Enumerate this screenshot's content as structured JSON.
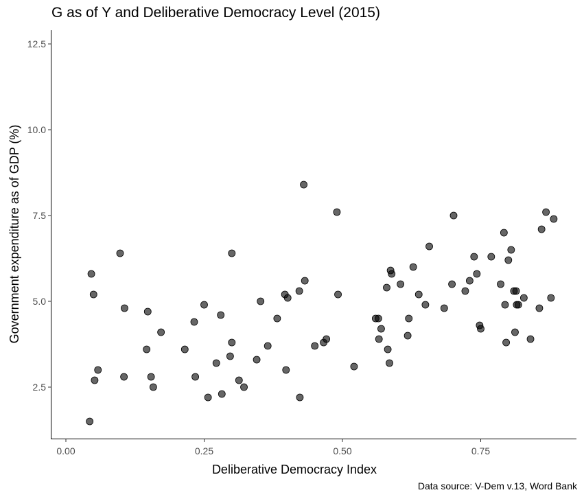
{
  "caption": "Data source: V-Dem v.13, Word Bank",
  "chart_data": {
    "type": "scatter",
    "title": "G as of Y and Deliberative Democracy Level (2015)",
    "xlabel": "Deliberative Democracy Index",
    "ylabel": "Government expenditure as of GDP (%)",
    "xlim": [
      -0.05,
      0.92
    ],
    "ylim": [
      0.8,
      12.9
    ],
    "xticks": [
      0.0,
      0.25,
      0.5,
      0.75
    ],
    "xtick_labels": [
      "0.00",
      "0.25",
      "0.50",
      "0.75"
    ],
    "yticks": [
      2.5,
      5.0,
      7.5,
      10.0,
      12.5
    ],
    "ytick_labels": [
      "2.5",
      "5.0",
      "7.5",
      "10.0",
      "12.5"
    ],
    "grid": false,
    "point_color": "#000000",
    "point_opacity": 0.6,
    "points": [
      [
        0.043,
        1.5
      ],
      [
        0.046,
        5.8
      ],
      [
        0.05,
        5.2
      ],
      [
        0.052,
        2.7
      ],
      [
        0.058,
        3.0
      ],
      [
        0.098,
        6.4
      ],
      [
        0.105,
        2.8
      ],
      [
        0.106,
        4.8
      ],
      [
        0.146,
        3.6
      ],
      [
        0.148,
        4.7
      ],
      [
        0.154,
        2.8
      ],
      [
        0.158,
        2.5
      ],
      [
        0.172,
        4.1
      ],
      [
        0.215,
        3.6
      ],
      [
        0.232,
        4.4
      ],
      [
        0.234,
        2.8
      ],
      [
        0.25,
        4.9
      ],
      [
        0.257,
        2.2
      ],
      [
        0.272,
        3.2
      ],
      [
        0.28,
        4.6
      ],
      [
        0.282,
        2.3
      ],
      [
        0.297,
        3.4
      ],
      [
        0.3,
        3.8
      ],
      [
        0.3,
        6.4
      ],
      [
        0.313,
        2.7
      ],
      [
        0.322,
        2.5
      ],
      [
        0.345,
        3.3
      ],
      [
        0.352,
        5.0
      ],
      [
        0.365,
        3.7
      ],
      [
        0.382,
        4.5
      ],
      [
        0.396,
        5.2
      ],
      [
        0.398,
        3.0
      ],
      [
        0.401,
        5.1
      ],
      [
        0.422,
        5.3
      ],
      [
        0.423,
        2.2
      ],
      [
        0.43,
        8.4
      ],
      [
        0.432,
        5.6
      ],
      [
        0.45,
        3.7
      ],
      [
        0.466,
        3.8
      ],
      [
        0.471,
        3.9
      ],
      [
        0.49,
        7.6
      ],
      [
        0.492,
        5.2
      ],
      [
        0.521,
        3.1
      ],
      [
        0.56,
        4.5
      ],
      [
        0.565,
        4.5
      ],
      [
        0.566,
        3.9
      ],
      [
        0.57,
        4.2
      ],
      [
        0.58,
        5.4
      ],
      [
        0.582,
        3.6
      ],
      [
        0.585,
        3.2
      ],
      [
        0.587,
        5.9
      ],
      [
        0.589,
        5.8
      ],
      [
        0.605,
        5.5
      ],
      [
        0.618,
        4.0
      ],
      [
        0.62,
        4.5
      ],
      [
        0.628,
        6.0
      ],
      [
        0.638,
        5.2
      ],
      [
        0.65,
        4.9
      ],
      [
        0.657,
        6.6
      ],
      [
        0.684,
        4.8
      ],
      [
        0.698,
        5.5
      ],
      [
        0.701,
        7.5
      ],
      [
        0.722,
        5.3
      ],
      [
        0.73,
        5.6
      ],
      [
        0.738,
        6.3
      ],
      [
        0.743,
        5.8
      ],
      [
        0.748,
        4.3
      ],
      [
        0.75,
        4.2
      ],
      [
        0.769,
        6.3
      ],
      [
        0.786,
        5.5
      ],
      [
        0.792,
        7.0
      ],
      [
        0.794,
        4.9
      ],
      [
        0.796,
        3.8
      ],
      [
        0.8,
        6.2
      ],
      [
        0.805,
        6.5
      ],
      [
        0.81,
        5.3
      ],
      [
        0.812,
        4.1
      ],
      [
        0.814,
        5.3
      ],
      [
        0.815,
        4.9
      ],
      [
        0.818,
        4.9
      ],
      [
        0.828,
        5.1
      ],
      [
        0.84,
        3.9
      ],
      [
        0.856,
        4.8
      ],
      [
        0.86,
        7.1
      ],
      [
        0.868,
        7.6
      ],
      [
        0.877,
        5.1
      ],
      [
        0.882,
        7.4
      ]
    ]
  }
}
